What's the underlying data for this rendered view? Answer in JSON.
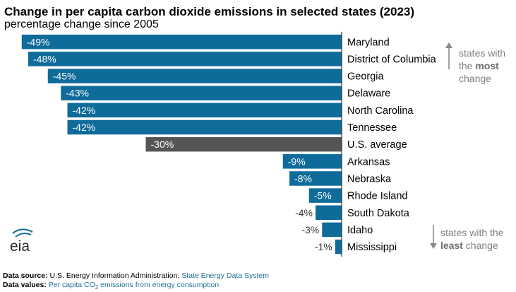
{
  "title": "Change in per capita carbon dioxide emissions in selected states (2023)",
  "subtitle": "percentage change since 2005",
  "chart_data": {
    "type": "bar",
    "orientation": "horizontal",
    "categories": [
      "Maryland",
      "District of Columbia",
      "Georgia",
      "Delaware",
      "North Carolina",
      "Tennessee",
      "U.S. average",
      "Arkansas",
      "Nebraska",
      "Rhode Island",
      "South Dakota",
      "Idaho",
      "Mississippi"
    ],
    "values": [
      -49,
      -48,
      -45,
      -43,
      -42,
      -42,
      -30,
      -9,
      -8,
      -5,
      -4,
      -3,
      -1
    ],
    "data_labels": [
      "-49%",
      "-48%",
      "-45%",
      "-43%",
      "-42%",
      "-42%",
      "-30%",
      "-9%",
      "-8%",
      "-5%",
      "-4%",
      "-3%",
      "-1%"
    ],
    "highlight_category": "U.S. average",
    "xlim": [
      -50,
      0
    ],
    "grid": false,
    "colors": {
      "bar": "#0e6b9a",
      "highlight": "#555555",
      "axis": "#333333"
    }
  },
  "notes": {
    "most": {
      "line1": "states with",
      "line2_pre": "the ",
      "line2_bold": "most",
      "line3": "change"
    },
    "least": {
      "line1": "states with the",
      "line2_bold": "least",
      "line2_post": " change"
    }
  },
  "logo": {
    "text": "eia",
    "icon": "eia-logo-icon"
  },
  "footer": {
    "source_label": "Data source:",
    "source_text": "U.S. Energy Information Administration, ",
    "source_link": "State Energy Data System",
    "values_label": "Data values:",
    "values_text_pre": "Per capita CO",
    "values_text_sub": "2",
    "values_text_post": " emissions from energy consumption"
  }
}
